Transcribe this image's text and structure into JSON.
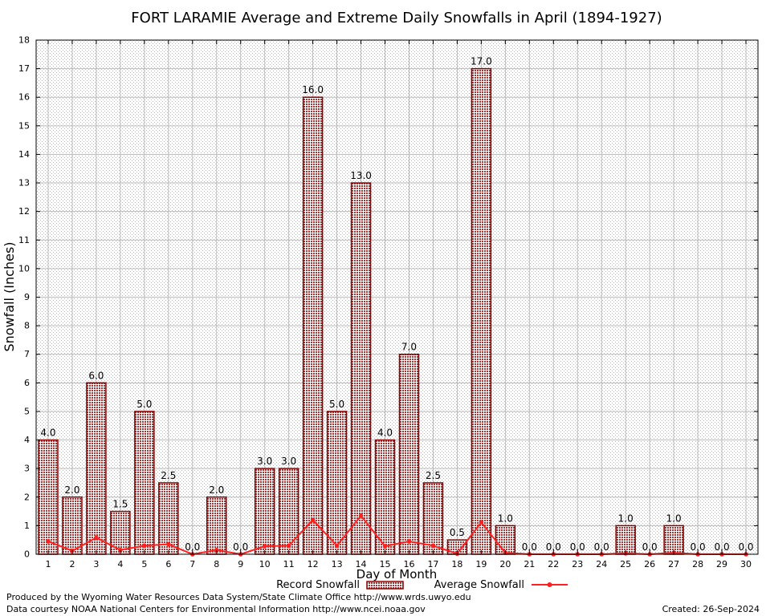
{
  "chart_data": {
    "type": "bar",
    "title": "FORT LARAMIE Average and Extreme Daily Snowfalls in April (1894-1927)",
    "xlabel": "Day of Month",
    "ylabel": "Snowfall (Inches)",
    "ylim": [
      0,
      18
    ],
    "yticks": [
      "0",
      "1",
      "2",
      "3",
      "4",
      "5",
      "6",
      "7",
      "8",
      "9",
      "10",
      "11",
      "12",
      "13",
      "14",
      "15",
      "16",
      "17",
      "18"
    ],
    "grid": true,
    "categories": [
      "1",
      "2",
      "3",
      "4",
      "5",
      "6",
      "7",
      "8",
      "9",
      "10",
      "11",
      "12",
      "13",
      "14",
      "15",
      "16",
      "17",
      "18",
      "19",
      "20",
      "21",
      "22",
      "23",
      "24",
      "25",
      "26",
      "27",
      "28",
      "29",
      "30"
    ],
    "series": [
      {
        "name": "Record Snowfall",
        "kind": "bar",
        "color": "#8b0000",
        "values": [
          4.0,
          2.0,
          6.0,
          1.5,
          5.0,
          2.5,
          0.0,
          2.0,
          0.0,
          3.0,
          3.0,
          16.0,
          5.0,
          13.0,
          4.0,
          7.0,
          2.5,
          0.5,
          17.0,
          1.0,
          0.0,
          0.0,
          0.0,
          0.0,
          1.0,
          0.0,
          1.0,
          0.0,
          0.0,
          0.0
        ],
        "labels": [
          "4.0",
          "2.0",
          "6.0",
          "1.5",
          "5.0",
          "2.5",
          "0.0",
          "2.0",
          "0.0",
          "3.0",
          "3.0",
          "16.0",
          "5.0",
          "13.0",
          "4.0",
          "7.0",
          "2.5",
          "0.5",
          "17.0",
          "1.0",
          "0.0",
          "0.0",
          "0.0",
          "0.0",
          "1.0",
          "0.0",
          "1.0",
          "0.0",
          "0.0",
          "0.0"
        ]
      },
      {
        "name": "Average Snowfall",
        "kind": "line",
        "color": "#ff2020",
        "values": [
          0.45,
          0.12,
          0.58,
          0.15,
          0.3,
          0.35,
          0.0,
          0.15,
          0.0,
          0.28,
          0.3,
          1.2,
          0.3,
          1.35,
          0.28,
          0.45,
          0.3,
          0.02,
          1.12,
          0.05,
          0.0,
          0.0,
          0.0,
          0.0,
          0.03,
          0.0,
          0.05,
          0.0,
          0.0,
          0.0
        ]
      }
    ],
    "legend_position": "bottom-center"
  },
  "footer": {
    "produced_by": "Produced by the Wyoming Water Resources Data System/State Climate Office http://www.wrds.uwyo.edu",
    "courtesy": "Data courtesy NOAA National Centers for Environmental Information http://www.ncei.noaa.gov",
    "created": "Created:  26-Sep-2024"
  }
}
